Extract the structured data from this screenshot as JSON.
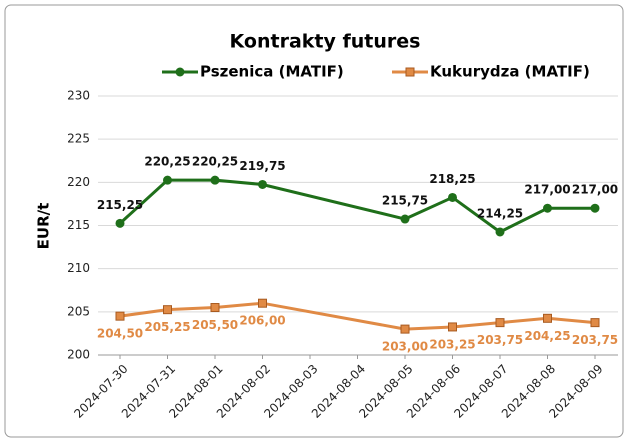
{
  "chart_data": {
    "type": "line",
    "title": "Kontrakty futures",
    "y_label": "EUR/t",
    "x": [
      "2024-07-30",
      "2024-07-31",
      "2024-08-01",
      "2024-08-02",
      "2024-08-05",
      "2024-08-06",
      "2024-08-07",
      "2024-08-08",
      "2024-08-09"
    ],
    "xlim": [
      "2024-07-30",
      "2024-08-09"
    ],
    "xticks": [
      "2024-07-30",
      "2024-07-31",
      "2024-08-01",
      "2024-08-02",
      "2024-08-03",
      "2024-08-04",
      "2024-08-05",
      "2024-08-06",
      "2024-08-07",
      "2024-08-08",
      "2024-08-09"
    ],
    "ylim": [
      200,
      230
    ],
    "yticks": [
      200,
      205,
      210,
      215,
      220,
      225,
      230
    ],
    "grid": true,
    "legend": "top",
    "series": [
      {
        "name": "Pszenica (MATIF)",
        "color": "#1f6f1a",
        "marker": "circle",
        "label_position": "above",
        "values": [
          215.25,
          220.25,
          220.25,
          219.75,
          215.75,
          218.25,
          214.25,
          217.0,
          217.0
        ],
        "value_labels": [
          "215,25",
          "220,25",
          "220,25",
          "219,75",
          "215,75",
          "218,25",
          "214,25",
          "217,00",
          "217,00"
        ]
      },
      {
        "name": "Kukurydza (MATIF)",
        "color": "#e08a45",
        "marker": "square",
        "label_position": "below",
        "values": [
          204.5,
          205.25,
          205.5,
          206.0,
          203.0,
          203.25,
          203.75,
          204.25,
          203.75
        ],
        "value_labels": [
          "204,50",
          "205,25",
          "205,50",
          "206,00",
          "203,00",
          "203,25",
          "203,75",
          "204,25",
          "203,75"
        ]
      }
    ]
  }
}
